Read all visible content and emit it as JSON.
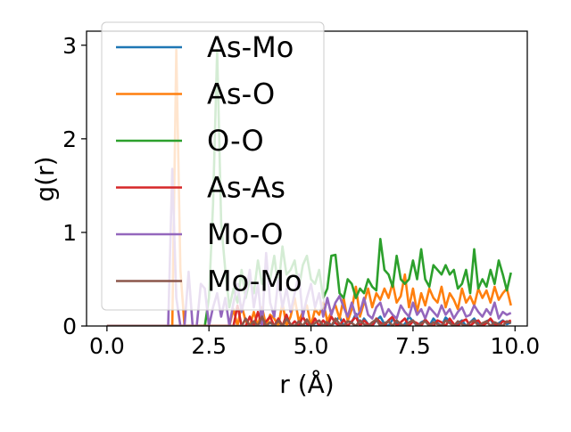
{
  "chart_data": {
    "type": "line",
    "title": "",
    "xlabel": "r (Å)",
    "ylabel": "g(r)",
    "xlim": [
      -0.5,
      10.3
    ],
    "ylim": [
      0,
      3.15
    ],
    "xticks": [
      0.0,
      2.5,
      5.0,
      7.5,
      10.0
    ],
    "xtick_labels": [
      "0.0",
      "2.5",
      "5.0",
      "7.5",
      "10.0"
    ],
    "yticks": [
      0,
      1,
      2,
      3
    ],
    "ytick_labels": [
      "0",
      "1",
      "2",
      "3"
    ],
    "grid": false,
    "legend_position": "upper-left",
    "series": [
      {
        "name": "As-Mo",
        "color": "#1f77b4",
        "x": [
          0.0,
          5.3,
          5.4,
          5.5,
          5.6,
          5.7,
          5.8,
          5.9,
          6.0,
          6.1,
          6.2,
          6.3,
          6.4,
          6.5,
          6.6,
          6.7,
          6.8,
          6.9,
          7.0,
          7.1,
          7.2,
          7.3,
          7.4,
          7.5,
          7.6,
          7.7,
          7.8,
          7.9,
          8.0,
          8.1,
          8.2,
          8.3,
          8.4,
          8.5,
          8.6,
          8.7,
          8.8,
          8.9,
          9.0,
          9.1,
          9.2,
          9.3,
          9.4,
          9.5,
          9.6,
          9.7,
          9.8,
          9.9
        ],
        "y": [
          0,
          0,
          0.06,
          0.0,
          0.05,
          0.1,
          0.0,
          0.05,
          0.04,
          0.13,
          0.0,
          0.08,
          0.02,
          0.0,
          0.06,
          0.1,
          0.02,
          0.0,
          0.07,
          0.04,
          0.0,
          0.02,
          0.1,
          0.05,
          0.0,
          0.04,
          0.06,
          0.0,
          0.08,
          0.03,
          0.0,
          0.09,
          0.05,
          0.0,
          0.03,
          0.06,
          0.0,
          0.04,
          0.08,
          0.02,
          0.0,
          0.05,
          0.07,
          0.0,
          0.03,
          0.06,
          0.02,
          0.04
        ]
      },
      {
        "name": "As-O",
        "color": "#ff7f0e",
        "x": [
          0.0,
          1.5,
          1.6,
          1.7,
          1.8,
          1.9,
          2.0,
          2.1,
          2.2,
          2.3,
          2.4,
          2.5,
          2.6,
          2.7,
          2.8,
          2.9,
          3.0,
          3.1,
          3.2,
          3.3,
          3.4,
          3.5,
          3.6,
          3.7,
          3.8,
          3.9,
          4.0,
          4.1,
          4.2,
          4.3,
          4.4,
          4.5,
          4.6,
          4.7,
          4.8,
          4.9,
          5.0,
          5.1,
          5.2,
          5.3,
          5.4,
          5.5,
          5.6,
          5.7,
          5.8,
          5.9,
          6.0,
          6.1,
          6.2,
          6.3,
          6.4,
          6.5,
          6.6,
          6.7,
          6.8,
          6.9,
          7.0,
          7.1,
          7.2,
          7.3,
          7.4,
          7.5,
          7.6,
          7.7,
          7.8,
          7.9,
          8.0,
          8.1,
          8.2,
          8.3,
          8.4,
          8.5,
          8.6,
          8.7,
          8.8,
          8.9,
          9.0,
          9.1,
          9.2,
          9.3,
          9.4,
          9.5,
          9.6,
          9.7,
          9.8,
          9.9
        ],
        "y": [
          0,
          0,
          0.0,
          2.95,
          0.6,
          0.0,
          0.0,
          0.0,
          0.0,
          0.0,
          0.0,
          0.0,
          0.0,
          0.0,
          0.0,
          0.0,
          0.0,
          0.18,
          0.0,
          0.22,
          0.05,
          0.0,
          0.15,
          0.0,
          0.2,
          0.0,
          0.12,
          0.08,
          0.0,
          0.25,
          0.0,
          0.1,
          0.3,
          0.05,
          0.15,
          0.22,
          0.0,
          0.18,
          0.12,
          0.25,
          0.05,
          0.15,
          0.22,
          0.08,
          0.3,
          0.05,
          0.18,
          0.42,
          0.1,
          0.25,
          0.4,
          0.2,
          0.35,
          0.28,
          0.4,
          0.3,
          0.46,
          0.25,
          0.32,
          0.55,
          0.2,
          0.4,
          0.15,
          0.35,
          0.22,
          0.4,
          0.3,
          0.25,
          0.42,
          0.2,
          0.35,
          0.28,
          0.18,
          0.4,
          0.25,
          0.32,
          0.22,
          0.4,
          0.3,
          0.38,
          0.25,
          0.42,
          0.28,
          0.35,
          0.4,
          0.22
        ]
      },
      {
        "name": "O-O",
        "color": "#2ca02c",
        "x": [
          0.0,
          2.3,
          2.4,
          2.5,
          2.6,
          2.7,
          2.8,
          2.9,
          3.0,
          3.1,
          3.2,
          3.3,
          3.4,
          3.5,
          3.6,
          3.7,
          3.8,
          3.9,
          4.0,
          4.1,
          4.2,
          4.3,
          4.4,
          4.5,
          4.6,
          4.7,
          4.8,
          4.9,
          5.0,
          5.1,
          5.2,
          5.3,
          5.4,
          5.5,
          5.6,
          5.7,
          5.8,
          5.9,
          6.0,
          6.1,
          6.2,
          6.3,
          6.4,
          6.5,
          6.6,
          6.7,
          6.8,
          6.9,
          7.0,
          7.1,
          7.2,
          7.3,
          7.4,
          7.5,
          7.6,
          7.7,
          7.8,
          7.9,
          8.0,
          8.1,
          8.2,
          8.3,
          8.4,
          8.5,
          8.6,
          8.7,
          8.8,
          8.9,
          9.0,
          9.1,
          9.2,
          9.3,
          9.4,
          9.5,
          9.6,
          9.7,
          9.8,
          9.9
        ],
        "y": [
          0,
          0,
          0.0,
          0.3,
          1.3,
          2.95,
          1.1,
          0.6,
          0.2,
          0.4,
          0.25,
          0.6,
          0.3,
          0.5,
          0.35,
          0.7,
          0.45,
          0.6,
          0.5,
          0.75,
          0.4,
          0.85,
          0.55,
          0.6,
          0.7,
          0.4,
          0.65,
          0.75,
          0.5,
          0.45,
          0.6,
          0.3,
          0.4,
          0.75,
          0.76,
          0.35,
          0.3,
          0.5,
          0.45,
          0.3,
          0.4,
          0.35,
          0.5,
          0.42,
          0.38,
          0.93,
          0.6,
          0.55,
          0.42,
          0.75,
          0.5,
          0.45,
          0.5,
          0.7,
          0.5,
          0.82,
          0.5,
          0.42,
          0.65,
          0.6,
          0.55,
          0.65,
          0.55,
          0.6,
          0.4,
          0.45,
          0.6,
          0.35,
          0.82,
          0.4,
          0.5,
          0.42,
          0.6,
          0.45,
          0.7,
          0.55,
          0.38,
          0.57
        ]
      },
      {
        "name": "As-As",
        "color": "#d62728",
        "x": [
          0.0,
          3.1,
          3.2,
          3.3,
          3.4,
          3.5,
          3.6,
          3.7,
          3.8,
          3.9,
          4.0,
          4.1,
          4.2,
          4.3,
          4.4,
          4.5,
          4.6,
          4.7,
          4.8,
          4.9,
          5.0,
          5.1,
          5.2,
          5.3,
          5.4,
          5.5,
          5.6,
          5.7,
          5.8,
          5.9,
          6.0,
          6.1,
          6.2,
          6.3,
          6.4,
          6.5,
          6.6,
          6.7,
          6.8,
          6.9,
          7.0,
          7.1,
          7.2,
          7.3,
          7.4,
          7.5,
          7.6,
          7.7,
          7.8,
          7.9,
          8.0,
          8.1,
          8.2,
          8.3,
          8.4,
          8.5,
          8.6,
          8.7,
          8.8,
          8.9,
          9.0,
          9.1,
          9.2,
          9.3,
          9.4,
          9.5,
          9.6,
          9.7,
          9.8,
          9.9
        ],
        "y": [
          0,
          0,
          0.22,
          0.0,
          0.0,
          0.1,
          0.0,
          0.15,
          0.0,
          0.05,
          0.1,
          0.0,
          0.08,
          0.0,
          0.12,
          0.0,
          0.05,
          0.0,
          0.1,
          0.02,
          0.0,
          0.08,
          0.0,
          0.06,
          0.0,
          0.1,
          0.03,
          0.0,
          0.07,
          0.0,
          0.05,
          0.1,
          0.0,
          0.06,
          0.02,
          0.0,
          0.08,
          0.04,
          0.0,
          0.06,
          0.1,
          0.0,
          0.04,
          0.08,
          0.0,
          0.05,
          0.03,
          0.0,
          0.07,
          0.02,
          0.0,
          0.06,
          0.04,
          0.0,
          0.08,
          0.02,
          0.0,
          0.05,
          0.07,
          0.0,
          0.04,
          0.06,
          0.0,
          0.03,
          0.08,
          0.02,
          0.0,
          0.05,
          0.04,
          0.06
        ]
      },
      {
        "name": "Mo-O",
        "color": "#9467bd",
        "x": [
          0.0,
          1.5,
          1.6,
          1.7,
          1.8,
          1.9,
          2.0,
          2.1,
          2.2,
          2.3,
          2.4,
          2.5,
          2.6,
          2.7,
          2.8,
          2.9,
          3.0,
          3.1,
          3.2,
          3.3,
          3.4,
          3.5,
          3.6,
          3.7,
          3.8,
          3.9,
          4.0,
          4.1,
          4.2,
          4.3,
          4.4,
          4.5,
          4.6,
          4.7,
          4.8,
          4.9,
          5.0,
          5.1,
          5.2,
          5.3,
          5.4,
          5.5,
          5.6,
          5.7,
          5.8,
          5.9,
          6.0,
          6.1,
          6.2,
          6.3,
          6.4,
          6.5,
          6.6,
          6.7,
          6.8,
          6.9,
          7.0,
          7.1,
          7.2,
          7.3,
          7.4,
          7.5,
          7.6,
          7.7,
          7.8,
          7.9,
          8.0,
          8.1,
          8.2,
          8.3,
          8.4,
          8.5,
          8.6,
          8.7,
          8.8,
          8.9,
          9.0,
          9.1,
          9.2,
          9.3,
          9.4,
          9.5,
          9.6,
          9.7,
          9.8,
          9.9
        ],
        "y": [
          0,
          0,
          1.68,
          0.3,
          0.0,
          0.0,
          0.58,
          0.0,
          0.0,
          0.45,
          0.4,
          0.0,
          0.2,
          0.35,
          0.1,
          0.3,
          0.0,
          0.25,
          0.45,
          0.15,
          0.35,
          0.6,
          0.2,
          0.45,
          0.0,
          0.78,
          0.25,
          0.1,
          0.5,
          0.2,
          0.4,
          0.15,
          0.35,
          0.55,
          0.1,
          0.3,
          0.45,
          0.2,
          0.35,
          0.1,
          0.3,
          0.12,
          0.25,
          0.32,
          0.2,
          0.1,
          0.25,
          0.1,
          0.15,
          0.3,
          0.12,
          0.08,
          0.2,
          0.25,
          0.1,
          0.18,
          0.12,
          0.08,
          0.22,
          0.15,
          0.1,
          0.25,
          0.12,
          0.18,
          0.08,
          0.2,
          0.15,
          0.1,
          0.22,
          0.12,
          0.18,
          0.08,
          0.15,
          0.2,
          0.1,
          0.12,
          0.22,
          0.15,
          0.1,
          0.18,
          0.12,
          0.25,
          0.08,
          0.15,
          0.12,
          0.14
        ]
      },
      {
        "name": "Mo-Mo",
        "color": "#8c564b",
        "x": [
          0.0,
          3.3,
          3.4,
          3.5,
          3.6,
          3.7,
          3.8,
          3.9,
          4.0,
          4.1,
          4.2,
          4.3,
          4.4,
          4.5,
          4.6,
          4.7,
          4.8,
          4.9,
          5.0,
          5.1,
          5.2,
          5.3,
          5.4,
          5.5,
          5.6,
          5.7,
          5.8,
          5.9,
          6.0,
          6.1,
          6.2,
          6.3,
          6.4,
          6.5,
          6.6,
          6.7,
          6.8,
          6.9,
          7.0,
          7.1,
          7.2,
          7.3,
          7.4,
          7.5,
          7.6,
          7.7,
          7.8,
          7.9,
          8.0,
          8.1,
          8.2,
          8.3,
          8.4,
          8.5,
          8.6,
          8.7,
          8.8,
          8.9,
          9.0,
          9.1,
          9.2,
          9.3,
          9.4,
          9.5,
          9.6,
          9.7,
          9.8,
          9.9
        ],
        "y": [
          0,
          0,
          0.08,
          0.0,
          0.05,
          0.0,
          0.1,
          0.0,
          0.04,
          0.0,
          0.06,
          0.0,
          0.08,
          0.02,
          0.0,
          0.05,
          0.0,
          0.07,
          0.0,
          0.03,
          0.06,
          0.0,
          0.04,
          0.0,
          0.08,
          0.02,
          0.0,
          0.05,
          0.03,
          0.0,
          0.06,
          0.02,
          0.0,
          0.04,
          0.07,
          0.0,
          0.03,
          0.05,
          0.0,
          0.06,
          0.02,
          0.0,
          0.04,
          0.06,
          0.0,
          0.03,
          0.05,
          0.0,
          0.04,
          0.02,
          0.0,
          0.06,
          0.03,
          0.0,
          0.05,
          0.02,
          0.0,
          0.04,
          0.06,
          0.0,
          0.03,
          0.05,
          0.0,
          0.04,
          0.02,
          0.0,
          0.05,
          0.03
        ]
      }
    ]
  }
}
